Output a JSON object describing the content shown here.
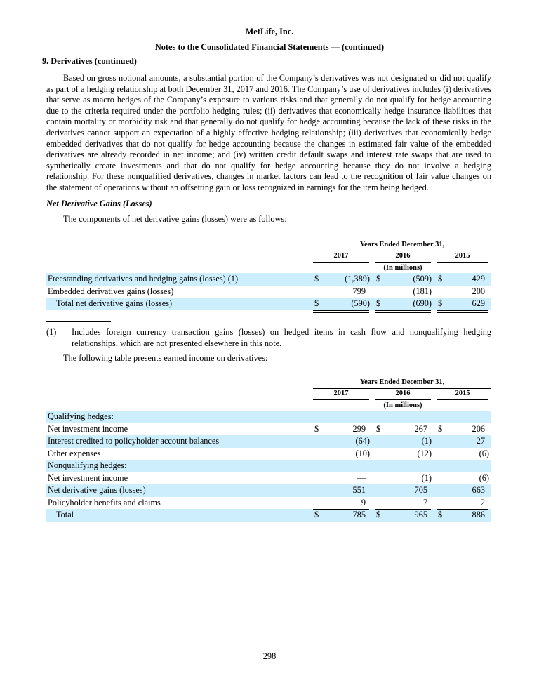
{
  "header": {
    "company": "MetLife, Inc.",
    "subtitle": "Notes to the Consolidated Financial Statements — (continued)"
  },
  "section_title": "9. Derivatives (continued)",
  "paragraph1": "Based on gross notional amounts, a substantial portion of the Company’s derivatives was not designated or did not qualify as part of a hedging relationship at both December 31, 2017 and 2016. The Company’s use of derivatives includes (i) derivatives that serve as macro hedges of the Company’s exposure to various risks and that generally do not qualify for hedge accounting due to the criteria required under the portfolio hedging rules; (ii) derivatives that economically hedge insurance liabilities that contain mortality or morbidity risk and that generally do not qualify for hedge accounting because the lack of these risks in the derivatives cannot support an expectation of a highly effective hedging relationship; (iii) derivatives that economically hedge embedded derivatives that do not qualify for hedge accounting because the changes in estimated fair value of the embedded derivatives are already recorded in net income; and (iv) written credit default swaps and interest rate swaps that are used to synthetically create investments and that do not qualify for hedge accounting because they do not involve a hedging relationship. For these nonqualified derivatives, changes in market factors can lead to the recognition of fair value changes on the statement of operations without an offsetting gain or loss recognized in earnings for the item being hedged.",
  "subheading": "Net Derivative Gains (Losses)",
  "paragraph2": "The components of net derivative gains (losses) were as follows:",
  "table1": {
    "period_header": "Years Ended December 31,",
    "years": [
      "2017",
      "2016",
      "2015"
    ],
    "units": "(In millions)",
    "rows": [
      {
        "label": "Freestanding derivatives and hedging gains (losses) (1)",
        "values": [
          "(1,389)",
          "(509)",
          "429"
        ],
        "dollar": true,
        "shade": true
      },
      {
        "label": "Embedded derivatives gains (losses)",
        "values": [
          "799",
          "(181)",
          "200"
        ],
        "dollar": false,
        "shade": false
      },
      {
        "label": "Total net derivative gains (losses)",
        "values": [
          "(590)",
          "(690)",
          "629"
        ],
        "dollar": true,
        "shade": true,
        "total": true
      }
    ]
  },
  "footnote": {
    "marker": "(1)",
    "text": "Includes foreign currency transaction gains (losses) on hedged items in cash flow and nonqualifying hedging relationships, which are not presented elsewhere in this note."
  },
  "paragraph3": "The following table presents earned income on derivatives:",
  "table2": {
    "period_header": "Years Ended December 31,",
    "years": [
      "2017",
      "2016",
      "2015"
    ],
    "units": "(In millions)",
    "rows": [
      {
        "label": "Qualifying hedges:",
        "values": [
          "",
          "",
          ""
        ],
        "dollar": false,
        "shade": true
      },
      {
        "label": "Net investment income",
        "values": [
          "299",
          "267",
          "206"
        ],
        "dollar": true,
        "shade": false
      },
      {
        "label": "Interest credited to policyholder account balances",
        "values": [
          "(64)",
          "(1)",
          "27"
        ],
        "dollar": false,
        "shade": true
      },
      {
        "label": "Other expenses",
        "values": [
          "(10)",
          "(12)",
          "(6)"
        ],
        "dollar": false,
        "shade": false
      },
      {
        "label": "Nonqualifying hedges:",
        "values": [
          "",
          "",
          ""
        ],
        "dollar": false,
        "shade": true
      },
      {
        "label": "Net investment income",
        "values": [
          "—",
          "(1)",
          "(6)"
        ],
        "dollar": false,
        "shade": false
      },
      {
        "label": "Net derivative gains (losses)",
        "values": [
          "551",
          "705",
          "663"
        ],
        "dollar": false,
        "shade": true
      },
      {
        "label": "Policyholder benefits and claims",
        "values": [
          "9",
          "7",
          "2"
        ],
        "dollar": false,
        "shade": false
      },
      {
        "label": "Total",
        "values": [
          "785",
          "965",
          "886"
        ],
        "dollar": true,
        "shade": true,
        "total": true
      }
    ]
  },
  "currency_symbol": "$",
  "page_number": "298",
  "colors": {
    "row_shade": "#cdeefc"
  }
}
